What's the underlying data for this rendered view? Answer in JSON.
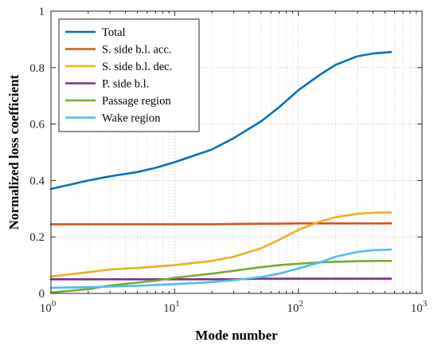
{
  "chart_data": {
    "type": "line",
    "xlabel": "Mode number",
    "ylabel": "Normalized loss coefficient",
    "xscale": "log",
    "xlim": [
      1,
      1000
    ],
    "ylim": [
      0,
      1
    ],
    "xticks": [
      {
        "value": 1,
        "base": "10",
        "exp": "0"
      },
      {
        "value": 10,
        "base": "10",
        "exp": "1"
      },
      {
        "value": 100,
        "base": "10",
        "exp": "2"
      },
      {
        "value": 1000,
        "base": "10",
        "exp": "3"
      }
    ],
    "yticks": [
      {
        "value": 0,
        "label": "0"
      },
      {
        "value": 0.2,
        "label": "0.2"
      },
      {
        "value": 0.4,
        "label": "0.4"
      },
      {
        "value": 0.6,
        "label": "0.6"
      },
      {
        "value": 0.8,
        "label": "0.8"
      },
      {
        "value": 1,
        "label": "1"
      }
    ],
    "grid": "on (major and minor, dotted)",
    "legend_location": "top-left",
    "x": [
      1,
      2,
      3,
      5,
      7,
      10,
      20,
      30,
      50,
      70,
      100,
      150,
      200,
      300,
      400,
      560
    ],
    "series": [
      {
        "name": "Total",
        "color": "#0072BD",
        "values": [
          0.37,
          0.4,
          0.415,
          0.43,
          0.445,
          0.465,
          0.51,
          0.55,
          0.61,
          0.66,
          0.72,
          0.775,
          0.81,
          0.84,
          0.85,
          0.855
        ]
      },
      {
        "name": "S. side b.l. acc.",
        "color": "#D95319",
        "values": [
          0.245,
          0.245,
          0.245,
          0.245,
          0.245,
          0.245,
          0.245,
          0.246,
          0.247,
          0.247,
          0.248,
          0.248,
          0.248,
          0.248,
          0.248,
          0.248
        ]
      },
      {
        "name": "S. side b.l. dec.",
        "color": "#EDB120",
        "values": [
          0.06,
          0.075,
          0.085,
          0.09,
          0.095,
          0.1,
          0.115,
          0.13,
          0.16,
          0.19,
          0.225,
          0.255,
          0.27,
          0.282,
          0.286,
          0.287
        ]
      },
      {
        "name": "P. side b.l.",
        "color": "#7E2F8E",
        "values": [
          0.05,
          0.05,
          0.05,
          0.05,
          0.05,
          0.05,
          0.05,
          0.05,
          0.052,
          0.052,
          0.052,
          0.052,
          0.052,
          0.052,
          0.052,
          0.052
        ]
      },
      {
        "name": "Passage region",
        "color": "#77AC30",
        "values": [
          0.003,
          0.015,
          0.028,
          0.038,
          0.045,
          0.055,
          0.07,
          0.08,
          0.093,
          0.1,
          0.105,
          0.11,
          0.112,
          0.114,
          0.115,
          0.115
        ]
      },
      {
        "name": "Wake region",
        "color": "#4DBEEE",
        "values": [
          0.02,
          0.022,
          0.024,
          0.027,
          0.03,
          0.033,
          0.04,
          0.047,
          0.058,
          0.07,
          0.088,
          0.11,
          0.13,
          0.147,
          0.153,
          0.155
        ]
      }
    ]
  }
}
